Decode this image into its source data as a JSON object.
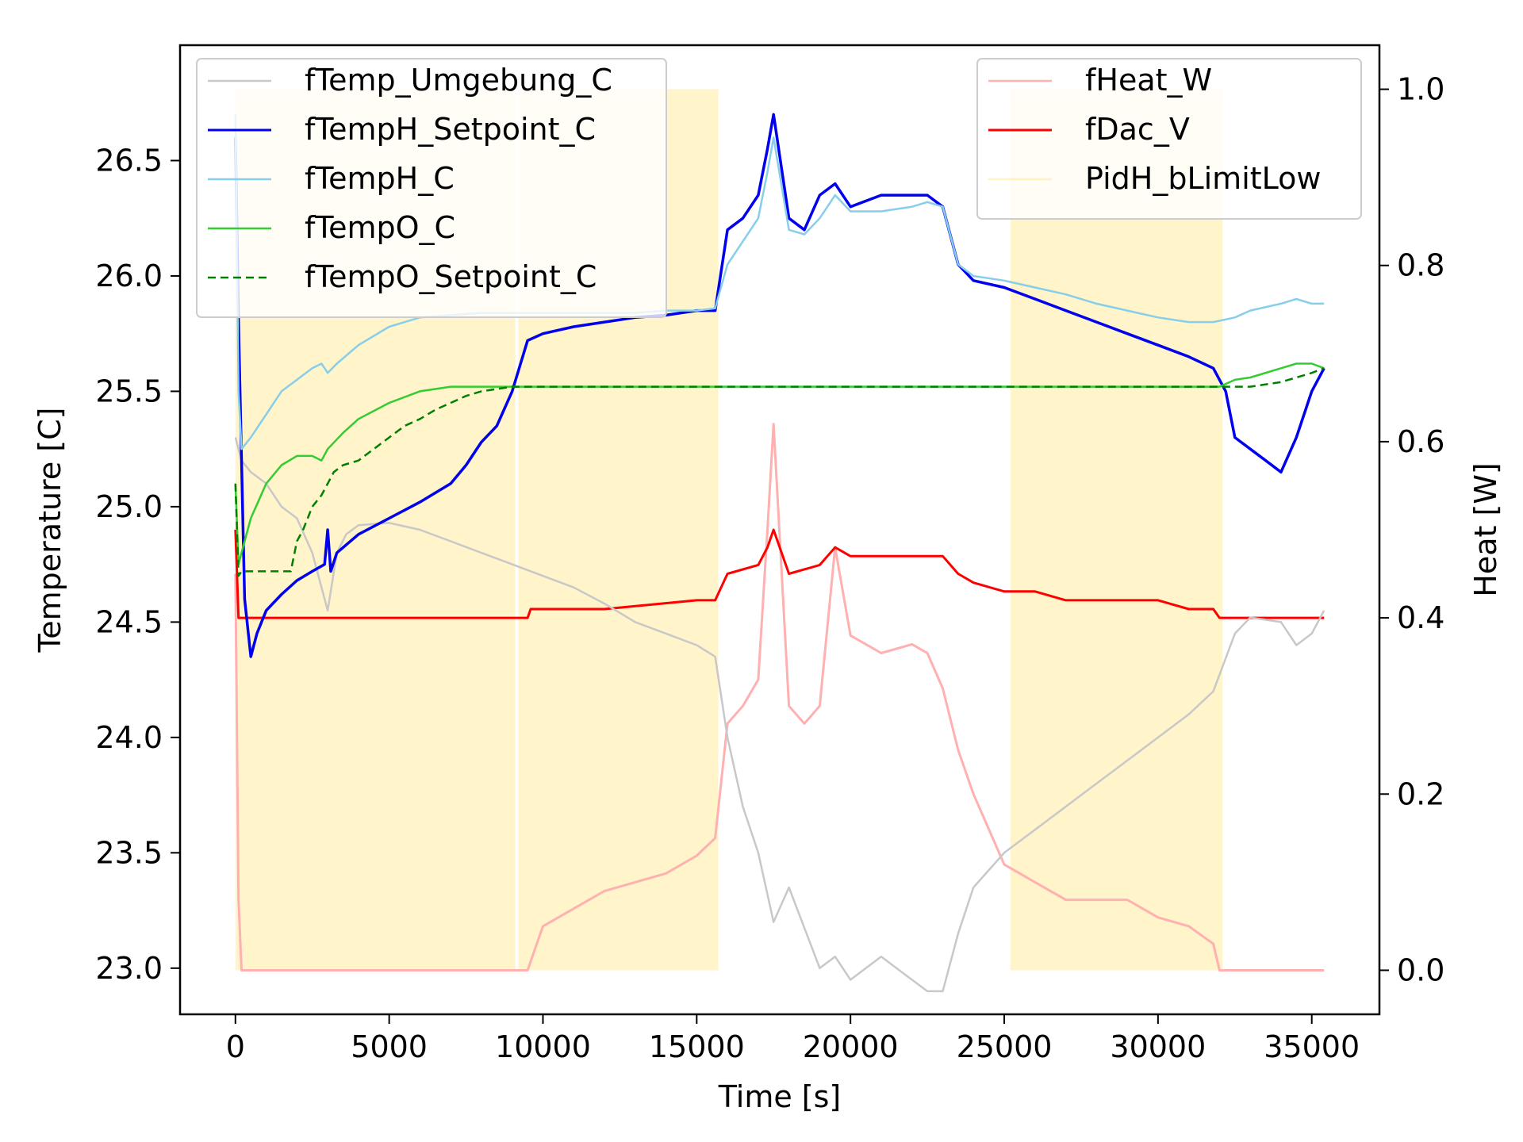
{
  "chart_data": {
    "type": "line",
    "title": "",
    "xlabel": "Time [s]",
    "ylabel_left": "Temperature [C]",
    "ylabel_right": "Heat [W]",
    "xlim": [
      -1800,
      37200
    ],
    "ylim_left": [
      22.8,
      27.0
    ],
    "ylim_right": [
      -0.05,
      1.05
    ],
    "x_ticks": [
      0,
      5000,
      10000,
      15000,
      20000,
      25000,
      30000,
      35000
    ],
    "y_left_ticks": [
      23.0,
      23.5,
      24.0,
      24.5,
      25.0,
      25.5,
      26.0,
      26.5
    ],
    "y_right_ticks": [
      0.0,
      0.2,
      0.4,
      0.6,
      0.8,
      1.0
    ],
    "grid": false,
    "legend_left": {
      "placement": "top-left",
      "entries": [
        "fTemp_Umgebung_C",
        "fTempH_Setpoint_C",
        "fTempH_C",
        "fTempO_C",
        "fTempO_Setpoint_C"
      ]
    },
    "legend_right": {
      "placement": "top-right",
      "entries": [
        "fHeat_W",
        "fDac_V",
        "PidH_bLimitLow"
      ]
    },
    "colors": {
      "fTemp_Umgebung_C": "#c8c8c8",
      "fTempH_Setpoint_C": "#0000ee",
      "fTempH_C": "#87ceeb",
      "fTempO_C": "#32cd32",
      "fTempO_Setpoint_C": "#008000",
      "fHeat_W": "#ffb0b0",
      "fDac_V": "#ff0000",
      "PidH_bLimitLow": "#fff3c4"
    },
    "series_left": [
      {
        "name": "fTemp_Umgebung_C",
        "x": [
          0,
          200,
          500,
          1000,
          1500,
          2000,
          2500,
          2800,
          3000,
          3300,
          3600,
          4000,
          5000,
          6000,
          7000,
          8000,
          9000,
          10000,
          11000,
          12000,
          13000,
          14000,
          15000,
          15600,
          16000,
          16500,
          17000,
          17500,
          18000,
          19000,
          19500,
          20000,
          21000,
          22000,
          22500,
          23000,
          23500,
          24000,
          25000,
          26000,
          27000,
          28000,
          29000,
          30000,
          31000,
          31800,
          32500,
          33000,
          34000,
          34500,
          35000,
          35400
        ],
        "y": [
          25.3,
          25.2,
          25.15,
          25.1,
          25.0,
          24.95,
          24.8,
          24.65,
          24.55,
          24.8,
          24.88,
          24.92,
          24.93,
          24.9,
          24.85,
          24.8,
          24.75,
          24.7,
          24.65,
          24.58,
          24.5,
          24.45,
          24.4,
          24.35,
          24.0,
          23.7,
          23.5,
          23.2,
          23.35,
          23.0,
          23.05,
          22.95,
          23.05,
          22.95,
          22.9,
          22.9,
          23.15,
          23.35,
          23.5,
          23.6,
          23.7,
          23.8,
          23.9,
          24.0,
          24.1,
          24.2,
          24.45,
          24.52,
          24.5,
          24.4,
          24.45,
          24.55
        ]
      },
      {
        "name": "fTempH_Setpoint_C",
        "x": [
          0,
          100,
          200,
          300,
          500,
          700,
          1000,
          1500,
          2000,
          2500,
          2900,
          3000,
          3100,
          3300,
          4000,
          5000,
          6000,
          7000,
          7500,
          8000,
          8500,
          9000,
          9500,
          10000,
          11000,
          12000,
          13000,
          14000,
          15000,
          15600,
          16000,
          16500,
          17000,
          17300,
          17500,
          18000,
          18500,
          19000,
          19500,
          20000,
          21000,
          22000,
          22500,
          23000,
          23500,
          24000,
          25000,
          26000,
          27000,
          28000,
          29000,
          30000,
          31000,
          31800,
          32200,
          32500,
          33000,
          33500,
          34000,
          34500,
          35000,
          35400
        ],
        "y": [
          26.6,
          25.8,
          25.2,
          24.6,
          24.35,
          24.45,
          24.55,
          24.62,
          24.68,
          24.72,
          24.75,
          24.9,
          24.72,
          24.8,
          24.88,
          24.95,
          25.02,
          25.1,
          25.18,
          25.28,
          25.35,
          25.5,
          25.72,
          25.75,
          25.78,
          25.8,
          25.82,
          25.83,
          25.85,
          25.85,
          26.2,
          26.25,
          26.35,
          26.55,
          26.7,
          26.25,
          26.2,
          26.35,
          26.4,
          26.3,
          26.35,
          26.35,
          26.35,
          26.3,
          26.05,
          25.98,
          25.95,
          25.9,
          25.85,
          25.8,
          25.75,
          25.7,
          25.65,
          25.6,
          25.5,
          25.3,
          25.25,
          25.2,
          25.15,
          25.3,
          25.5,
          25.6
        ]
      },
      {
        "name": "fTempH_C",
        "x": [
          0,
          100,
          200,
          500,
          1000,
          1500,
          2000,
          2500,
          2800,
          3000,
          3300,
          4000,
          5000,
          6000,
          7000,
          8000,
          9000,
          10000,
          11000,
          12000,
          13000,
          14000,
          15000,
          15600,
          16000,
          16500,
          17000,
          17300,
          17500,
          18000,
          18500,
          19000,
          19500,
          20000,
          21000,
          22000,
          22500,
          23000,
          23500,
          24000,
          25000,
          26000,
          27000,
          28000,
          29000,
          30000,
          31000,
          31800,
          32500,
          33000,
          34000,
          34500,
          35000,
          35400
        ],
        "y": [
          26.7,
          25.5,
          25.25,
          25.3,
          25.4,
          25.5,
          25.55,
          25.6,
          25.62,
          25.58,
          25.62,
          25.7,
          25.78,
          25.82,
          25.83,
          25.84,
          25.84,
          25.84,
          25.84,
          25.84,
          25.84,
          25.85,
          25.85,
          25.86,
          26.05,
          26.15,
          26.25,
          26.45,
          26.6,
          26.2,
          26.18,
          26.25,
          26.35,
          26.28,
          26.28,
          26.3,
          26.32,
          26.3,
          26.05,
          26.0,
          25.98,
          25.95,
          25.92,
          25.88,
          25.85,
          25.82,
          25.8,
          25.8,
          25.82,
          25.85,
          25.88,
          25.9,
          25.88,
          25.88
        ]
      },
      {
        "name": "fTempO_C",
        "x": [
          0,
          100,
          200,
          500,
          1000,
          1500,
          2000,
          2500,
          2800,
          3000,
          3500,
          4000,
          5000,
          6000,
          7000,
          8000,
          9000,
          10000,
          15000,
          20000,
          25000,
          30000,
          32000,
          32500,
          33000,
          34000,
          34500,
          35000,
          35400
        ],
        "y": [
          25.1,
          24.75,
          24.8,
          24.95,
          25.1,
          25.18,
          25.22,
          25.22,
          25.2,
          25.25,
          25.32,
          25.38,
          25.45,
          25.5,
          25.52,
          25.52,
          25.52,
          25.52,
          25.52,
          25.52,
          25.52,
          25.52,
          25.52,
          25.55,
          25.56,
          25.6,
          25.62,
          25.62,
          25.6
        ]
      },
      {
        "name": "fTempO_Setpoint_C",
        "x": [
          0,
          100,
          200,
          500,
          1000,
          1500,
          1800,
          2000,
          2200,
          2500,
          2800,
          3000,
          3200,
          3500,
          4000,
          4500,
          5000,
          5500,
          6000,
          6500,
          7000,
          7500,
          8000,
          9000,
          10000,
          15000,
          20000,
          25000,
          30000,
          32000,
          33000,
          34000,
          35000,
          35400
        ],
        "y": [
          25.1,
          24.7,
          24.72,
          24.72,
          24.72,
          24.72,
          24.72,
          24.85,
          24.9,
          25.0,
          25.05,
          25.1,
          25.15,
          25.18,
          25.2,
          25.25,
          25.3,
          25.35,
          25.38,
          25.42,
          25.45,
          25.48,
          25.5,
          25.52,
          25.52,
          25.52,
          25.52,
          25.52,
          25.52,
          25.52,
          25.52,
          25.54,
          25.58,
          25.6
        ]
      }
    ],
    "series_right": [
      {
        "name": "fHeat_W",
        "x": [
          0,
          100,
          200,
          500,
          9500,
          10000,
          12000,
          14000,
          15000,
          15600,
          16000,
          16500,
          17000,
          17300,
          17500,
          18000,
          18500,
          19000,
          19500,
          20000,
          21000,
          22000,
          22500,
          23000,
          23500,
          24000,
          25000,
          26000,
          27000,
          28000,
          29000,
          30000,
          31000,
          31800,
          32000,
          32200,
          35400
        ],
        "y": [
          0.45,
          0.08,
          0.0,
          0.0,
          0.0,
          0.05,
          0.09,
          0.11,
          0.13,
          0.15,
          0.28,
          0.3,
          0.33,
          0.5,
          0.62,
          0.3,
          0.28,
          0.3,
          0.48,
          0.38,
          0.36,
          0.37,
          0.36,
          0.32,
          0.25,
          0.2,
          0.12,
          0.1,
          0.08,
          0.08,
          0.08,
          0.06,
          0.05,
          0.03,
          0.0,
          0.0,
          0.0
        ]
      },
      {
        "name": "fDac_V",
        "x": [
          0,
          100,
          200,
          500,
          9500,
          9600,
          12000,
          15000,
          15600,
          16000,
          17000,
          17300,
          17500,
          18000,
          19000,
          19500,
          20000,
          21000,
          22000,
          22500,
          23000,
          23500,
          24000,
          25000,
          26000,
          27000,
          28000,
          29000,
          30000,
          31000,
          31800,
          32000,
          35400
        ],
        "y": [
          0.5,
          0.4,
          0.4,
          0.4,
          0.4,
          0.41,
          0.41,
          0.42,
          0.42,
          0.45,
          0.46,
          0.48,
          0.5,
          0.45,
          0.46,
          0.48,
          0.47,
          0.47,
          0.47,
          0.47,
          0.47,
          0.45,
          0.44,
          0.43,
          0.43,
          0.42,
          0.42,
          0.42,
          0.42,
          0.41,
          0.41,
          0.4,
          0.4
        ]
      },
      {
        "name": "PidH_bLimitLow",
        "x": [
          0,
          9100,
          9200,
          9500,
          15600,
          15700,
          25100,
          25200,
          32000,
          32100,
          35400
        ],
        "y": [
          1,
          0,
          1,
          1,
          1,
          0,
          0,
          1,
          1,
          0,
          0
        ]
      }
    ]
  }
}
